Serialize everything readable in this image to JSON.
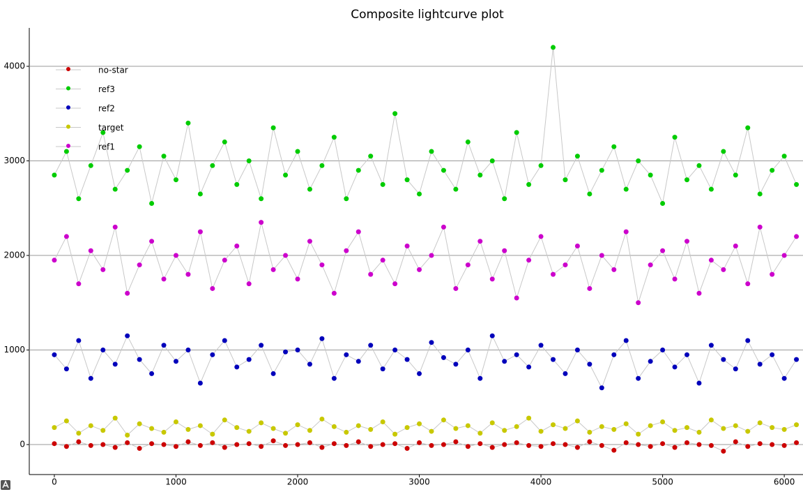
{
  "chart_data": {
    "type": "scatter",
    "title": "Composite lightcurve plot",
    "x": [
      0,
      100,
      200,
      300,
      400,
      500,
      600,
      700,
      800,
      900,
      1000,
      1100,
      1200,
      1300,
      1400,
      1500,
      1600,
      1700,
      1800,
      1900,
      2000,
      2100,
      2200,
      2300,
      2400,
      2500,
      2600,
      2700,
      2800,
      2900,
      3000,
      3100,
      3200,
      3300,
      3400,
      3500,
      3600,
      3700,
      3800,
      3900,
      4000,
      4100,
      4200,
      4300,
      4400,
      4500,
      4600,
      4700,
      4800,
      4900,
      5000,
      5100,
      5200,
      5300,
      5400,
      5500,
      5600,
      5700,
      5800,
      5900,
      6000,
      6100
    ],
    "series": [
      {
        "name": "no-star",
        "color": "#cc0000",
        "values": [
          10,
          -20,
          30,
          -10,
          0,
          -30,
          20,
          -40,
          10,
          0,
          -20,
          30,
          -10,
          20,
          -30,
          0,
          10,
          -20,
          40,
          -10,
          0,
          20,
          -30,
          10,
          -10,
          30,
          -20,
          0,
          10,
          -40,
          20,
          -10,
          0,
          30,
          -20,
          10,
          -30,
          0,
          20,
          -10,
          -20,
          10,
          0,
          -30,
          30,
          -10,
          -60,
          20,
          0,
          -20,
          10,
          -30,
          20,
          0,
          -10,
          -70,
          30,
          -20,
          10,
          0,
          -10,
          20
        ]
      },
      {
        "name": "ref3",
        "color": "#00cc00",
        "values": [
          2850,
          3100,
          2600,
          2950,
          3300,
          2700,
          2900,
          3150,
          2550,
          3050,
          2800,
          3400,
          2650,
          2950,
          3200,
          2750,
          3000,
          2600,
          3350,
          2850,
          3100,
          2700,
          2950,
          3250,
          2600,
          2900,
          3050,
          2750,
          3500,
          2800,
          2650,
          3100,
          2900,
          2700,
          3200,
          2850,
          3000,
          2600,
          3300,
          2750,
          2950,
          4200,
          2800,
          3050,
          2650,
          2900,
          3150,
          2700,
          3000,
          2850,
          2550,
          3250,
          2800,
          2950,
          2700,
          3100,
          2850,
          3350,
          2650,
          2900,
          3050,
          2750
        ]
      },
      {
        "name": "ref2",
        "color": "#0000bb",
        "values": [
          950,
          800,
          1100,
          700,
          1000,
          850,
          1150,
          900,
          750,
          1050,
          880,
          1000,
          650,
          950,
          1100,
          820,
          900,
          1050,
          750,
          980,
          1000,
          850,
          1120,
          700,
          950,
          880,
          1050,
          800,
          1000,
          900,
          750,
          1080,
          920,
          850,
          1000,
          700,
          1150,
          880,
          950,
          820,
          1050,
          900,
          750,
          1000,
          850,
          600,
          950,
          1100,
          700,
          880,
          1000,
          820,
          950,
          650,
          1050,
          900,
          800,
          1100,
          850,
          950,
          700,
          900
        ]
      },
      {
        "name": "target",
        "color": "#c8c800",
        "values": [
          180,
          250,
          120,
          200,
          150,
          280,
          100,
          220,
          170,
          130,
          240,
          160,
          200,
          110,
          260,
          180,
          140,
          230,
          170,
          120,
          210,
          150,
          270,
          190,
          130,
          200,
          160,
          240,
          110,
          180,
          220,
          140,
          260,
          170,
          200,
          120,
          230,
          150,
          190,
          280,
          140,
          210,
          170,
          250,
          130,
          190,
          160,
          220,
          110,
          200,
          240,
          150,
          180,
          130,
          260,
          170,
          200,
          140,
          230,
          180,
          160,
          210
        ]
      },
      {
        "name": "ref1",
        "color": "#cc00cc",
        "values": [
          1950,
          2200,
          1700,
          2050,
          1850,
          2300,
          1600,
          1900,
          2150,
          1750,
          2000,
          1800,
          2250,
          1650,
          1950,
          2100,
          1700,
          2350,
          1850,
          2000,
          1750,
          2150,
          1900,
          1600,
          2050,
          2250,
          1800,
          1950,
          1700,
          2100,
          1850,
          2000,
          2300,
          1650,
          1900,
          2150,
          1750,
          2050,
          1550,
          1950,
          2200,
          1800,
          1900,
          2100,
          1650,
          2000,
          1850,
          2250,
          1500,
          1900,
          2050,
          1750,
          2150,
          1600,
          1950,
          1850,
          2100,
          1700,
          2300,
          1800,
          2000,
          2200
        ]
      }
    ],
    "xlim": [
      -206,
      6154
    ],
    "ylim": [
      -317,
      4406
    ],
    "xticks": [
      0,
      1000,
      2000,
      3000,
      4000,
      5000,
      6000
    ],
    "yticks": [
      0,
      1000,
      2000,
      3000,
      4000
    ],
    "grid": true,
    "legend": "upper-left"
  }
}
